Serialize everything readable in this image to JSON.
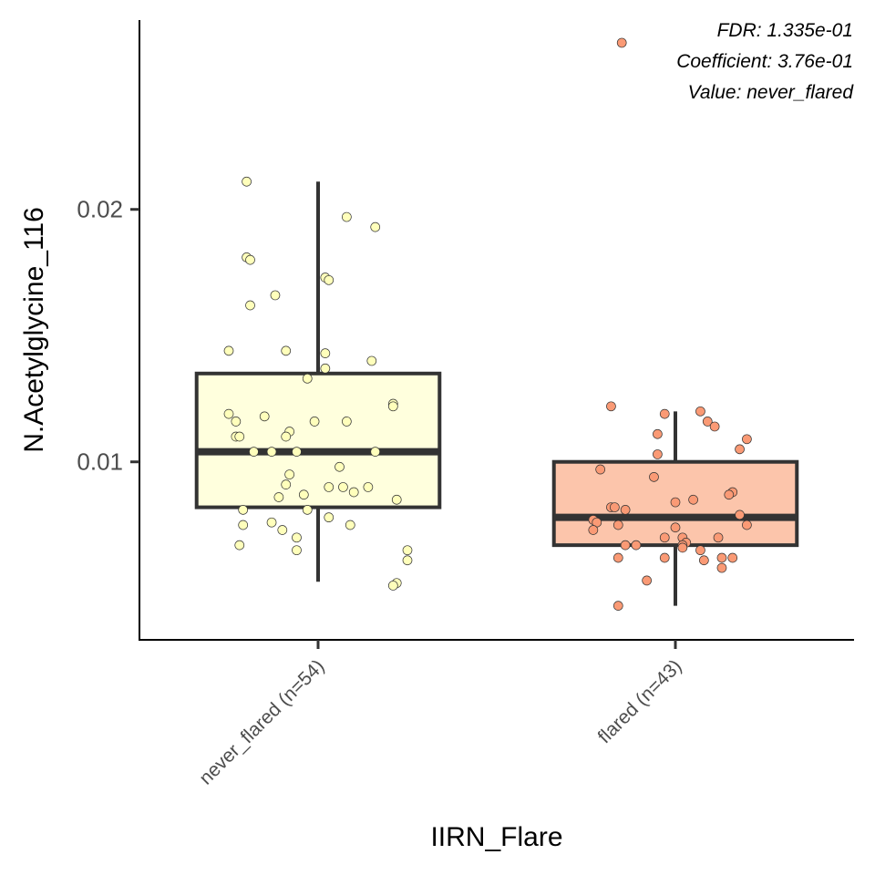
{
  "chart_data": {
    "type": "box",
    "xlabel": "IIRN_Flare",
    "ylabel": "N.Acetylglycine_116",
    "ylim": [
      0.00295,
      0.0275
    ],
    "yticks": [
      0.01,
      0.02
    ],
    "ytick_labels": [
      "0.01",
      "0.02"
    ],
    "grid": false,
    "legend": "none",
    "categories": [
      "never_flared (n=54)",
      "flared (n=43)"
    ],
    "annotations": [
      "FDR: 1.335e-01",
      "Coefficient: 3.76e-01",
      "Value: never_flared"
    ],
    "boxes": [
      {
        "category": "never_flared (n=54)",
        "fill": "#FFFFDD",
        "point_fill": "#FFFFBB",
        "whisker_low": 0.00525,
        "q1": 0.0082,
        "median": 0.0104,
        "q3": 0.0135,
        "whisker_high": 0.0211,
        "points": [
          [
            -0.2,
            0.0211
          ],
          [
            0.08,
            0.0197
          ],
          [
            0.16,
            0.0193
          ],
          [
            -0.2,
            0.0181
          ],
          [
            -0.19,
            0.018
          ],
          [
            0.02,
            0.0173
          ],
          [
            0.03,
            0.0172
          ],
          [
            -0.12,
            0.0166
          ],
          [
            -0.19,
            0.0162
          ],
          [
            -0.25,
            0.0144
          ],
          [
            -0.09,
            0.0144
          ],
          [
            0.02,
            0.0143
          ],
          [
            0.15,
            0.014
          ],
          [
            0.02,
            0.0137
          ],
          [
            -0.03,
            0.0133
          ],
          [
            0.21,
            0.0123
          ],
          [
            0.21,
            0.0122
          ],
          [
            -0.25,
            0.0119
          ],
          [
            -0.15,
            0.0118
          ],
          [
            -0.23,
            0.0116
          ],
          [
            -0.01,
            0.0116
          ],
          [
            0.08,
            0.0116
          ],
          [
            -0.08,
            0.0112
          ],
          [
            -0.09,
            0.011
          ],
          [
            -0.23,
            0.011
          ],
          [
            -0.22,
            0.011
          ],
          [
            -0.18,
            0.0104
          ],
          [
            -0.13,
            0.0104
          ],
          [
            -0.06,
            0.0104
          ],
          [
            0.16,
            0.0104
          ],
          [
            0.06,
            0.0098
          ],
          [
            -0.08,
            0.0095
          ],
          [
            -0.09,
            0.0091
          ],
          [
            0.03,
            0.009
          ],
          [
            0.07,
            0.009
          ],
          [
            0.14,
            0.009
          ],
          [
            0.1,
            0.0088
          ],
          [
            -0.04,
            0.0087
          ],
          [
            -0.11,
            0.0086
          ],
          [
            0.22,
            0.0085
          ],
          [
            -0.21,
            0.0081
          ],
          [
            -0.03,
            0.0081
          ],
          [
            0.03,
            0.0078
          ],
          [
            -0.13,
            0.0076
          ],
          [
            -0.21,
            0.0075
          ],
          [
            0.09,
            0.0075
          ],
          [
            -0.1,
            0.0073
          ],
          [
            -0.06,
            0.007
          ],
          [
            -0.22,
            0.0067
          ],
          [
            -0.06,
            0.0065
          ],
          [
            0.25,
            0.0065
          ],
          [
            0.25,
            0.0061
          ],
          [
            0.22,
            0.0052
          ],
          [
            0.21,
            0.0051
          ]
        ]
      },
      {
        "category": "flared (n=43)",
        "fill": "#FCC5AB",
        "point_fill": "#FA9A75",
        "whisker_low": 0.0043,
        "q1": 0.0067,
        "median": 0.0078,
        "q3": 0.01,
        "whisker_high": 0.012,
        "points": [
          [
            -0.18,
            0.0122
          ],
          [
            -0.03,
            0.0119
          ],
          [
            0.07,
            0.012
          ],
          [
            0.09,
            0.0116
          ],
          [
            0.11,
            0.0114
          ],
          [
            -0.05,
            0.0111
          ],
          [
            0.2,
            0.0109
          ],
          [
            0.18,
            0.0105
          ],
          [
            -0.05,
            0.0103
          ],
          [
            -0.21,
            0.0097
          ],
          [
            -0.06,
            0.0094
          ],
          [
            0.16,
            0.0088
          ],
          [
            0.15,
            0.0087
          ],
          [
            0.05,
            0.0085
          ],
          [
            0.0,
            0.0084
          ],
          [
            -0.18,
            0.0082
          ],
          [
            -0.17,
            0.0082
          ],
          [
            -0.14,
            0.0081
          ],
          [
            0.18,
            0.0079
          ],
          [
            -0.23,
            0.0077
          ],
          [
            -0.22,
            0.0076
          ],
          [
            -0.16,
            0.0075
          ],
          [
            0.2,
            0.0075
          ],
          [
            -0.23,
            0.0073
          ],
          [
            -0.03,
            0.007
          ],
          [
            0.02,
            0.007
          ],
          [
            0.12,
            0.007
          ],
          [
            -0.14,
            0.0067
          ],
          [
            -0.11,
            0.0067
          ],
          [
            0.03,
            0.0068
          ],
          [
            0.02,
            0.0067
          ],
          [
            0.02,
            0.0066
          ],
          [
            -0.03,
            0.0062
          ],
          [
            0.07,
            0.0065
          ],
          [
            -0.16,
            0.0062
          ],
          [
            0.08,
            0.0061
          ],
          [
            0.13,
            0.0062
          ],
          [
            0.16,
            0.0062
          ],
          [
            0.13,
            0.0058
          ],
          [
            -0.08,
            0.0053
          ],
          [
            -0.16,
            0.0043
          ],
          [
            -0.15,
            0.0266
          ],
          [
            0.0,
            0.0074
          ]
        ]
      }
    ]
  }
}
